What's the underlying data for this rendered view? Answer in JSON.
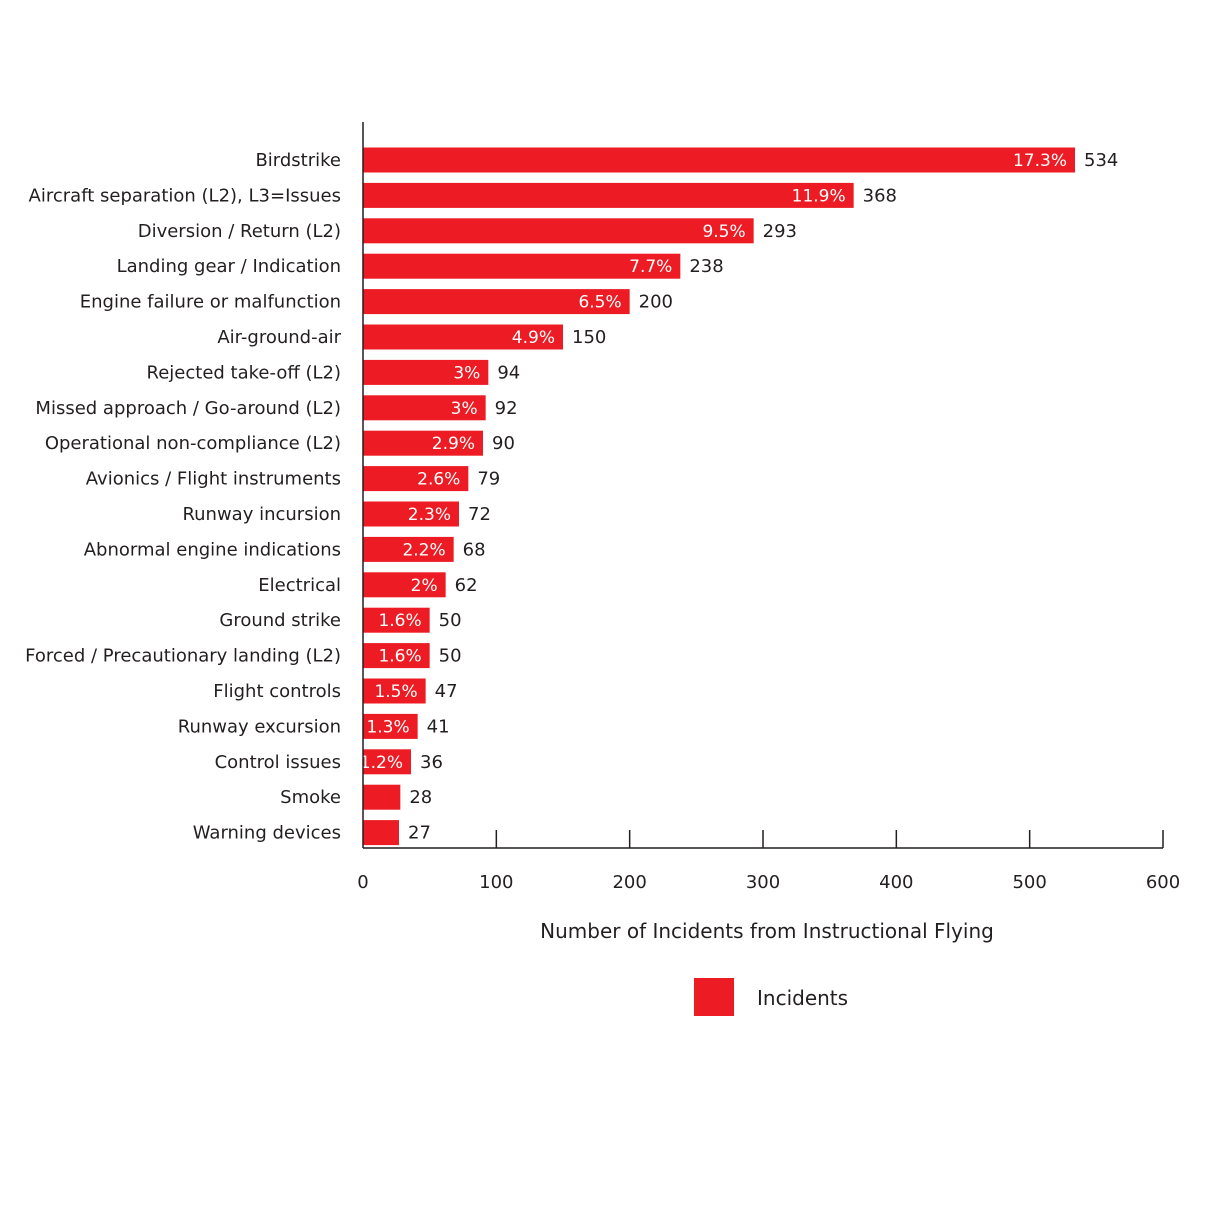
{
  "chart_data": {
    "type": "bar",
    "orientation": "horizontal",
    "title": "",
    "xlabel": "Number of Incidents from Instructional Flying",
    "ylabel": "",
    "xlim": [
      0,
      600
    ],
    "xticks": [
      0,
      100,
      200,
      300,
      400,
      500,
      600
    ],
    "grid": false,
    "legend_position": "bottom-center",
    "categories": [
      "Birdstrike",
      "Aircraft separation (L2), L3=Issues",
      "Diversion / Return (L2)",
      "Landing gear / Indication",
      "Engine failure or malfunction",
      "Air-ground-air",
      "Rejected take-off (L2)",
      "Missed approach / Go-around (L2)",
      "Operational non-compliance (L2)",
      "Avionics / Flight instruments",
      "Runway incursion",
      "Abnormal engine indications",
      "Electrical",
      "Ground strike",
      "Forced / Precautionary landing (L2)",
      "Flight controls",
      "Runway excursion",
      "Control issues",
      "Smoke",
      "Warning devices"
    ],
    "series": [
      {
        "name": "Incidents",
        "color": "#ed1c24",
        "values": [
          534,
          368,
          293,
          238,
          200,
          150,
          94,
          92,
          90,
          79,
          72,
          68,
          62,
          50,
          50,
          47,
          41,
          36,
          28,
          27
        ],
        "percent_labels": [
          "17.3%",
          "11.9%",
          "9.5%",
          "7.7%",
          "6.5%",
          "4.9%",
          "3%",
          "3%",
          "2.9%",
          "2.6%",
          "2.3%",
          "2.2%",
          "2%",
          "1.6%",
          "1.6%",
          "1.5%",
          "1.3%",
          "1.2%",
          "",
          ""
        ]
      }
    ]
  }
}
